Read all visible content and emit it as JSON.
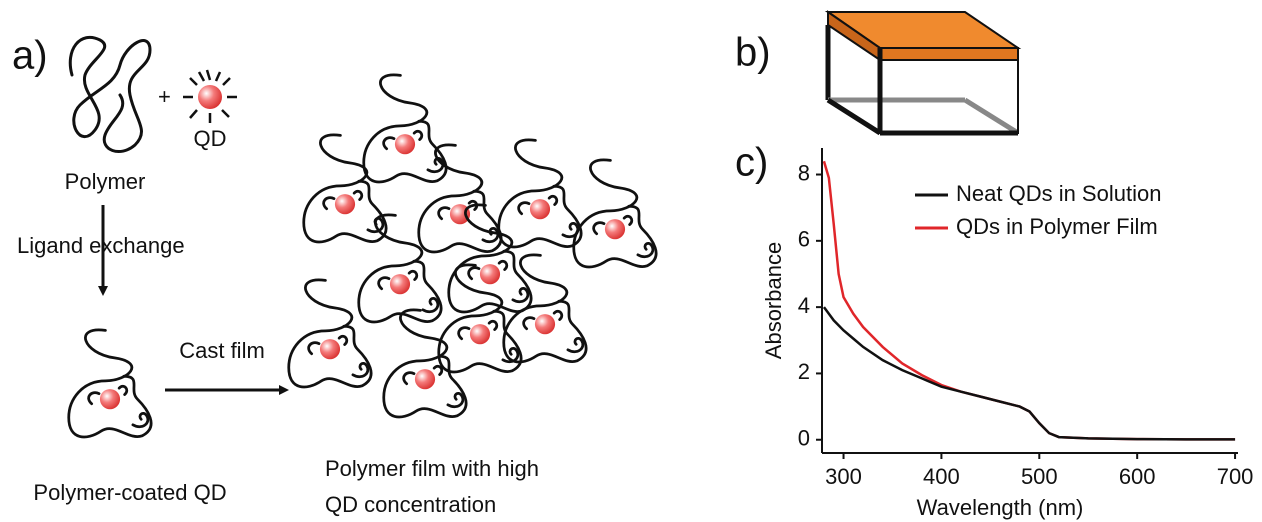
{
  "panel_a": {
    "label": "a)",
    "plus": "+",
    "qd": "QD",
    "polymer": "Polymer",
    "ligand_exchange": "Ligand exchange",
    "cast_film": "Cast film",
    "coated_qd": "Polymer-coated QD",
    "film_caption": [
      "Polymer film with high",
      "QD concentration"
    ]
  },
  "panel_b": {
    "label": "b)"
  },
  "panel_c": {
    "label": "c)"
  },
  "chart_data": {
    "type": "line",
    "x_label": "Wavelength (nm)",
    "y_label": "Absorbance",
    "x": [
      280,
      285,
      290,
      295,
      300,
      310,
      320,
      340,
      360,
      380,
      400,
      420,
      440,
      460,
      480,
      490,
      500,
      510,
      520,
      550,
      600,
      650,
      700
    ],
    "series": [
      {
        "name": "Neat QDs in Solution",
        "color": "#111111",
        "values": [
          4.0,
          3.8,
          3.6,
          3.45,
          3.3,
          3.05,
          2.8,
          2.4,
          2.1,
          1.85,
          1.6,
          1.45,
          1.3,
          1.15,
          1.0,
          0.85,
          0.5,
          0.2,
          0.08,
          0.04,
          0.02,
          0.01,
          0.01
        ]
      },
      {
        "name": "QDs in Polymer Film",
        "color": "#e0262a",
        "values": [
          8.4,
          7.9,
          6.5,
          5.0,
          4.3,
          3.8,
          3.4,
          2.8,
          2.3,
          1.95,
          1.65,
          1.45,
          1.3,
          1.15,
          1.0,
          0.85,
          0.5,
          0.2,
          0.08,
          0.04,
          0.02,
          0.01,
          0.01
        ]
      }
    ],
    "xlim": [
      278,
      703
    ],
    "ylim": [
      -0.4,
      8.8
    ],
    "xticks": [
      300,
      400,
      500,
      600,
      700
    ],
    "yticks": [
      0,
      2,
      4,
      6,
      8
    ]
  }
}
